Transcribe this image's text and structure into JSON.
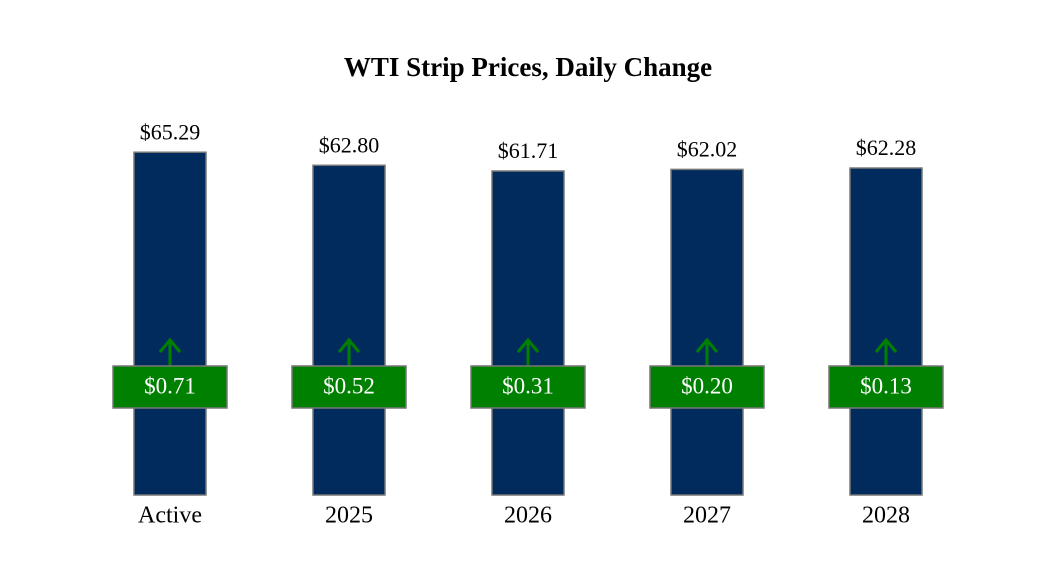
{
  "chart_data": {
    "type": "bar",
    "title": "WTI Strip Prices, Daily Change",
    "categories": [
      "Active",
      "2025",
      "2026",
      "2027",
      "2028"
    ],
    "values": [
      65.29,
      62.8,
      61.71,
      62.02,
      62.28
    ],
    "value_labels": [
      "$65.29",
      "$62.80",
      "$61.71",
      "$62.02",
      "$62.28"
    ],
    "color": "#002b5c",
    "changes": [
      0.71,
      0.52,
      0.31,
      0.2,
      0.13
    ],
    "change_labels": [
      "$0.71",
      "$0.52",
      "$0.31",
      "$0.20",
      "$0.13"
    ],
    "change_color": "#008000",
    "ylim": [
      0,
      70
    ]
  }
}
